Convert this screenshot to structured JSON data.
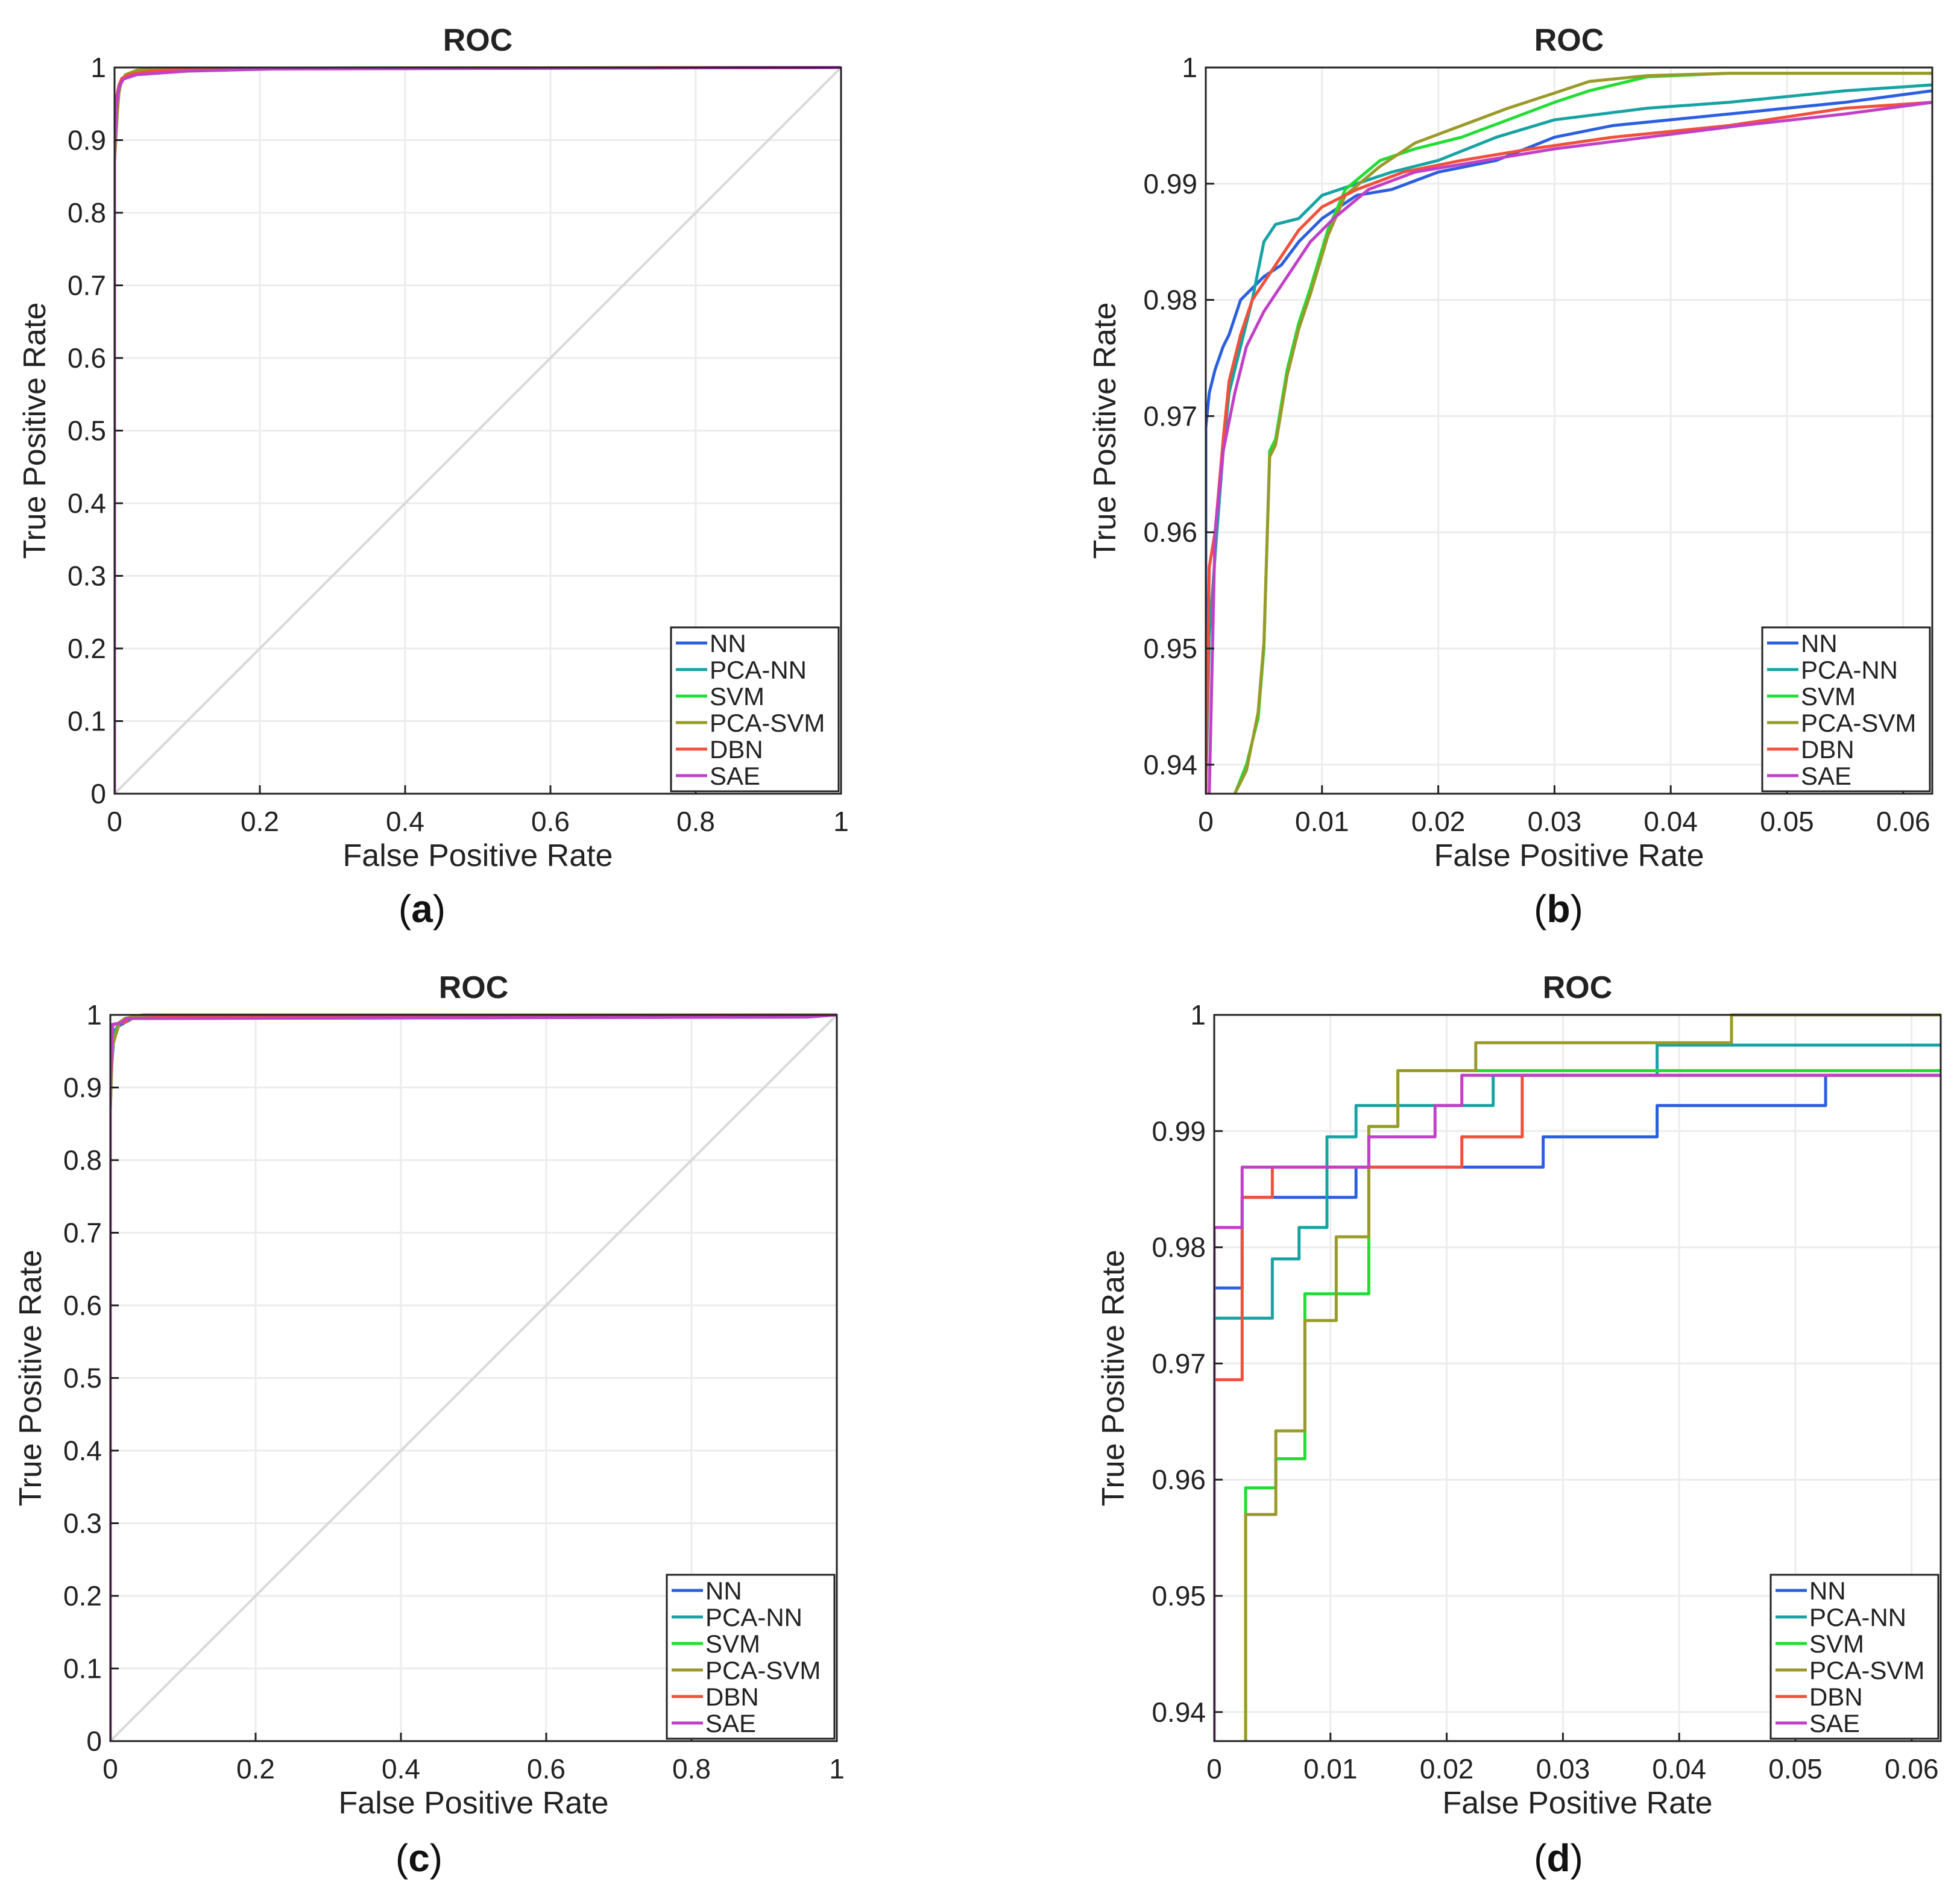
{
  "colors": {
    "NN": "#2b5fe0",
    "PCA-NN": "#17a3a3",
    "SVM": "#22dd33",
    "PCA-SVM": "#9a9a2a",
    "DBN": "#f0503c",
    "SAE": "#c040c8",
    "diagonal": "#d9d9d9",
    "grid": "#ececec",
    "axis": "#222222"
  },
  "chart_data": [
    {
      "id": "a",
      "caption_letter": "a",
      "type": "line",
      "title": "ROC",
      "xlabel": "False Positive Rate",
      "ylabel": "True Positive Rate",
      "xlim": [
        0,
        1
      ],
      "ylim": [
        0,
        1
      ],
      "xticks": [
        0,
        0.2,
        0.4,
        0.6,
        0.8,
        1
      ],
      "xtick_labels": [
        "0",
        "0.2",
        "0.4",
        "0.6",
        "0.8",
        "1"
      ],
      "yticks": [
        0,
        0.1,
        0.2,
        0.3,
        0.4,
        0.5,
        0.6,
        0.7,
        0.8,
        0.9,
        1
      ],
      "ytick_labels": [
        "0",
        "0.1",
        "0.2",
        "0.3",
        "0.4",
        "0.5",
        "0.6",
        "0.7",
        "0.8",
        "0.9",
        "1"
      ],
      "grid": true,
      "legend_position": "bottom-right",
      "diagonal": true,
      "series": [
        {
          "name": "NN",
          "x": [
            0,
            0,
            0.003,
            0.005,
            0.008,
            0.012,
            0.02,
            0.04,
            0.1,
            1
          ],
          "y": [
            0,
            0.9,
            0.95,
            0.97,
            0.98,
            0.985,
            0.99,
            0.995,
            0.998,
            1
          ]
        },
        {
          "name": "PCA-NN",
          "x": [
            0,
            0,
            0.003,
            0.006,
            0.01,
            0.02,
            0.04,
            0.08,
            1
          ],
          "y": [
            0,
            0.92,
            0.96,
            0.975,
            0.985,
            0.99,
            0.996,
            0.998,
            1
          ]
        },
        {
          "name": "SVM",
          "x": [
            0,
            0,
            0.004,
            0.006,
            0.009,
            0.015,
            0.03,
            0.06,
            1
          ],
          "y": [
            0,
            0.88,
            0.94,
            0.965,
            0.98,
            0.99,
            0.995,
            0.999,
            1
          ]
        },
        {
          "name": "PCA-SVM",
          "x": [
            0,
            0,
            0.004,
            0.006,
            0.009,
            0.015,
            0.03,
            0.06,
            1
          ],
          "y": [
            0,
            0.87,
            0.94,
            0.965,
            0.98,
            0.99,
            0.996,
            0.999,
            1
          ]
        },
        {
          "name": "DBN",
          "x": [
            0,
            0,
            0.003,
            0.006,
            0.01,
            0.02,
            0.05,
            0.1,
            1
          ],
          "y": [
            0,
            0.9,
            0.96,
            0.975,
            0.985,
            0.99,
            0.995,
            0.998,
            1
          ]
        },
        {
          "name": "SAE",
          "x": [
            0,
            0,
            0.003,
            0.006,
            0.012,
            0.03,
            0.1,
            0.22,
            1
          ],
          "y": [
            0,
            0.89,
            0.95,
            0.972,
            0.984,
            0.99,
            0.995,
            0.998,
            1
          ]
        }
      ]
    },
    {
      "id": "b",
      "caption_letter": "b",
      "type": "line",
      "title": "ROC",
      "xlabel": "False Positive Rate",
      "ylabel": "True Positive Rate",
      "xlim": [
        0,
        0.0625
      ],
      "ylim": [
        0.9375,
        1
      ],
      "xticks": [
        0,
        0.01,
        0.02,
        0.03,
        0.04,
        0.05,
        0.06
      ],
      "xtick_labels": [
        "0",
        "0.01",
        "0.02",
        "0.03",
        "0.04",
        "0.05",
        "0.06"
      ],
      "yticks": [
        0.94,
        0.95,
        0.96,
        0.97,
        0.98,
        0.99,
        1
      ],
      "ytick_labels": [
        "0.94",
        "0.95",
        "0.96",
        "0.97",
        "0.98",
        "0.99",
        "1"
      ],
      "grid": true,
      "legend_position": "bottom-right",
      "diagonal": false,
      "series": [
        {
          "name": "NN",
          "x": [
            0,
            0,
            0.0003,
            0.0008,
            0.0015,
            0.002,
            0.003,
            0.004,
            0.005,
            0.0065,
            0.008,
            0.01,
            0.013,
            0.016,
            0.02,
            0.025,
            0.03,
            0.035,
            0.04,
            0.05,
            0.055,
            0.0625
          ],
          "y": [
            0.9375,
            0.969,
            0.972,
            0.974,
            0.976,
            0.977,
            0.98,
            0.981,
            0.982,
            0.983,
            0.985,
            0.987,
            0.989,
            0.9895,
            0.991,
            0.992,
            0.994,
            0.995,
            0.9955,
            0.9965,
            0.997,
            0.998
          ]
        },
        {
          "name": "PCA-NN",
          "x": [
            0,
            0.0003,
            0.0008,
            0.0015,
            0.002,
            0.003,
            0.004,
            0.005,
            0.006,
            0.008,
            0.01,
            0.013,
            0.016,
            0.02,
            0.025,
            0.03,
            0.038,
            0.045,
            0.055,
            0.0625
          ],
          "y": [
            0.9375,
            0.951,
            0.958,
            0.967,
            0.972,
            0.976,
            0.98,
            0.985,
            0.9865,
            0.987,
            0.989,
            0.99,
            0.991,
            0.992,
            0.994,
            0.9955,
            0.9965,
            0.997,
            0.998,
            0.9985
          ]
        },
        {
          "name": "SVM",
          "x": [
            0.0025,
            0.0035,
            0.0045,
            0.005,
            0.0055,
            0.006,
            0.007,
            0.008,
            0.009,
            0.0105,
            0.012,
            0.015,
            0.018,
            0.022,
            0.026,
            0.03,
            0.033,
            0.038,
            0.045,
            0.0625
          ],
          "y": [
            0.9375,
            0.94,
            0.944,
            0.95,
            0.967,
            0.968,
            0.974,
            0.978,
            0.981,
            0.986,
            0.9895,
            0.992,
            0.993,
            0.994,
            0.9955,
            0.997,
            0.998,
            0.9992,
            0.9995,
            0.9995
          ]
        },
        {
          "name": "PCA-SVM",
          "x": [
            0.0025,
            0.0035,
            0.0045,
            0.005,
            0.0055,
            0.006,
            0.007,
            0.008,
            0.009,
            0.0105,
            0.012,
            0.015,
            0.018,
            0.022,
            0.026,
            0.03,
            0.033,
            0.038,
            0.045,
            0.0625
          ],
          "y": [
            0.9375,
            0.9395,
            0.9445,
            0.9505,
            0.9665,
            0.9675,
            0.9735,
            0.9775,
            0.9805,
            0.9855,
            0.989,
            0.9915,
            0.9935,
            0.995,
            0.9965,
            0.9978,
            0.9988,
            0.9993,
            0.9995,
            0.9995
          ]
        },
        {
          "name": "DBN",
          "x": [
            0,
            0.0003,
            0.0008,
            0.0015,
            0.002,
            0.003,
            0.004,
            0.006,
            0.008,
            0.01,
            0.013,
            0.017,
            0.022,
            0.028,
            0.035,
            0.045,
            0.055,
            0.0625
          ],
          "y": [
            0.9375,
            0.957,
            0.96,
            0.968,
            0.973,
            0.977,
            0.98,
            0.983,
            0.986,
            0.988,
            0.9895,
            0.991,
            0.992,
            0.993,
            0.994,
            0.995,
            0.9965,
            0.997
          ]
        },
        {
          "name": "SAE",
          "x": [
            0.0003,
            0.0008,
            0.0015,
            0.0025,
            0.0035,
            0.005,
            0.007,
            0.009,
            0.011,
            0.014,
            0.018,
            0.024,
            0.03,
            0.038,
            0.046,
            0.055,
            0.0625
          ],
          "y": [
            0.9375,
            0.96,
            0.967,
            0.972,
            0.976,
            0.979,
            0.982,
            0.985,
            0.987,
            0.9895,
            0.991,
            0.992,
            0.993,
            0.994,
            0.995,
            0.996,
            0.997
          ]
        }
      ]
    },
    {
      "id": "c",
      "caption_letter": "c",
      "type": "line",
      "title": "ROC",
      "xlabel": "False Positive Rate",
      "ylabel": "True Positive Rate",
      "xlim": [
        0,
        1
      ],
      "ylim": [
        0,
        1
      ],
      "xticks": [
        0,
        0.2,
        0.4,
        0.6,
        0.8,
        1
      ],
      "xtick_labels": [
        "0",
        "0.2",
        "0.4",
        "0.6",
        "0.8",
        "1"
      ],
      "yticks": [
        0,
        0.1,
        0.2,
        0.3,
        0.4,
        0.5,
        0.6,
        0.7,
        0.8,
        0.9,
        1
      ],
      "ytick_labels": [
        "0",
        "0.1",
        "0.2",
        "0.3",
        "0.4",
        "0.5",
        "0.6",
        "0.7",
        "0.8",
        "0.9",
        "1"
      ],
      "grid": true,
      "legend_position": "bottom-right",
      "diagonal": true,
      "series": [
        {
          "name": "NN",
          "x": [
            0,
            0,
            0.003,
            0.012,
            0.03,
            0.95,
            0.95,
            1
          ],
          "y": [
            0,
            0.9,
            0.976,
            0.985,
            0.995,
            0.997,
            1,
            1
          ]
        },
        {
          "name": "PCA-NN",
          "x": [
            0,
            0,
            0.005,
            0.012,
            0.024,
            0.04,
            1
          ],
          "y": [
            0,
            0.9,
            0.974,
            0.989,
            0.994,
            0.997,
            1
          ]
        },
        {
          "name": "SVM",
          "x": [
            0,
            0,
            0.003,
            0.008,
            0.013,
            0.02,
            1
          ],
          "y": [
            0,
            0.87,
            0.959,
            0.976,
            0.99,
            0.995,
            1
          ]
        },
        {
          "name": "PCA-SVM",
          "x": [
            0,
            0,
            0.003,
            0.008,
            0.013,
            0.02,
            0.045,
            1
          ],
          "y": [
            0,
            0.87,
            0.957,
            0.974,
            0.99,
            0.995,
            1,
            1
          ]
        },
        {
          "name": "DBN",
          "x": [
            0,
            0,
            0.003,
            0.005,
            0.021,
            0.026,
            0.09,
            1
          ],
          "y": [
            0,
            0.9,
            0.984,
            0.987,
            0.99,
            0.995,
            0.997,
            1
          ]
        },
        {
          "name": "SAE",
          "x": [
            0,
            0,
            0.003,
            0.014,
            0.019,
            0.022,
            0.96,
            1
          ],
          "y": [
            0,
            0.9,
            0.987,
            0.989,
            0.992,
            0.995,
            0.997,
            1
          ]
        }
      ]
    },
    {
      "id": "d",
      "caption_letter": "d",
      "type": "line",
      "title": "ROC",
      "xlabel": "False Positive Rate",
      "ylabel": "True Positive Rate",
      "xlim": [
        0,
        0.0625
      ],
      "ylim": [
        0.9375,
        1
      ],
      "xticks": [
        0,
        0.01,
        0.02,
        0.03,
        0.04,
        0.05,
        0.06
      ],
      "xtick_labels": [
        "0",
        "0.01",
        "0.02",
        "0.03",
        "0.04",
        "0.05",
        "0.06"
      ],
      "yticks": [
        0.94,
        0.95,
        0.96,
        0.97,
        0.98,
        0.99,
        1
      ],
      "ytick_labels": [
        "0.94",
        "0.95",
        "0.96",
        "0.97",
        "0.98",
        "0.99",
        "1"
      ],
      "grid": true,
      "legend_position": "bottom-right",
      "diagonal": false,
      "series": [
        {
          "name": "NN",
          "x": [
            0,
            0.0024,
            0.0024,
            0.0122,
            0.0122,
            0.0283,
            0.0283,
            0.0381,
            0.0381,
            0.0526,
            0.0526,
            0.0625
          ],
          "y": [
            0.9765,
            0.9765,
            0.9843,
            0.9843,
            0.9869,
            0.9869,
            0.9895,
            0.9895,
            0.9922,
            0.9922,
            0.9948,
            0.9948
          ]
        },
        {
          "name": "PCA-NN",
          "x": [
            0,
            0.005,
            0.005,
            0.0073,
            0.0073,
            0.0097,
            0.0097,
            0.0122,
            0.0122,
            0.024,
            0.024,
            0.0381,
            0.0381,
            0.0625
          ],
          "y": [
            0.9739,
            0.9739,
            0.979,
            0.979,
            0.9817,
            0.9817,
            0.9895,
            0.9895,
            0.9922,
            0.9922,
            0.9948,
            0.9948,
            0.9974,
            0.9974
          ]
        },
        {
          "name": "SVM",
          "x": [
            0.0027,
            0.0027,
            0.0053,
            0.0053,
            0.0078,
            0.0078,
            0.0133,
            0.0133,
            0.0158,
            0.0158,
            0.0625
          ],
          "y": [
            0.9375,
            0.9593,
            0.9593,
            0.9618,
            0.9618,
            0.976,
            0.976,
            0.9904,
            0.9904,
            0.9952,
            0.9952
          ]
        },
        {
          "name": "PCA-SVM",
          "x": [
            0.0027,
            0.0027,
            0.0053,
            0.0053,
            0.0078,
            0.0078,
            0.0105,
            0.0105,
            0.0133,
            0.0133,
            0.0158,
            0.0158,
            0.0225,
            0.0225,
            0.0445,
            0.0445,
            0.0625
          ],
          "y": [
            0.9375,
            0.957,
            0.957,
            0.9642,
            0.9642,
            0.9737,
            0.9737,
            0.9809,
            0.9809,
            0.9904,
            0.9904,
            0.9952,
            0.9952,
            0.9976,
            0.9976,
            1,
            1
          ]
        },
        {
          "name": "DBN",
          "x": [
            0,
            0,
            0.0024,
            0.0024,
            0.005,
            0.005,
            0.0133,
            0.0133,
            0.0213,
            0.0213,
            0.0265,
            0.0265,
            0.0625
          ],
          "y": [
            0.9375,
            0.9686,
            0.9686,
            0.9843,
            0.9843,
            0.9869,
            0.9869,
            0.9869,
            0.9869,
            0.9895,
            0.9895,
            0.9948,
            0.9948
          ]
        },
        {
          "name": "SAE",
          "x": [
            0,
            0,
            0.0024,
            0.0024,
            0.0133,
            0.0133,
            0.019,
            0.019,
            0.0213,
            0.0213,
            0.0625
          ],
          "y": [
            0.9375,
            0.9817,
            0.9817,
            0.9869,
            0.9869,
            0.9895,
            0.9895,
            0.9922,
            0.9922,
            0.9948,
            0.9948
          ]
        }
      ]
    }
  ]
}
